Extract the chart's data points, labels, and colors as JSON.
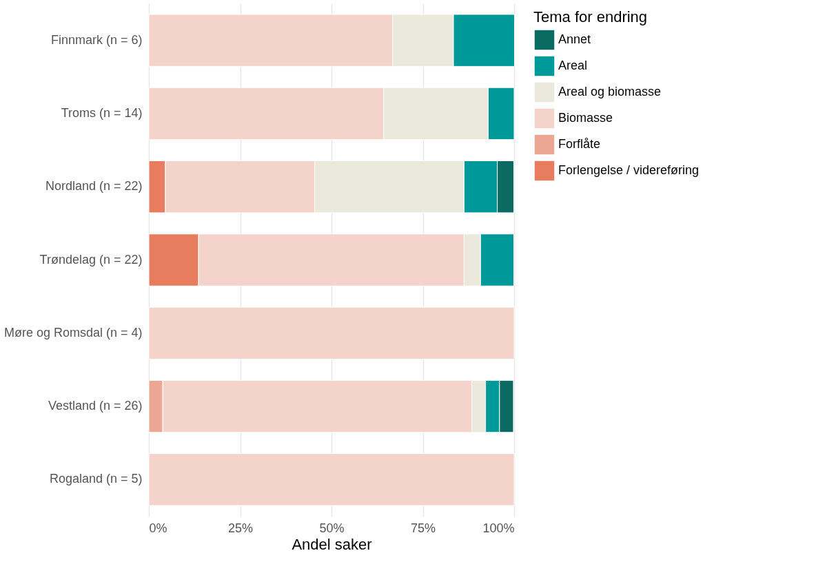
{
  "chart_data": {
    "type": "bar",
    "orientation": "horizontal",
    "stacked": true,
    "categories": [
      "Finnmark (n = 6)",
      "Troms (n = 14)",
      "Nordland (n = 22)",
      "Trøndelag (n = 22)",
      "Møre og Romsdal (n = 4)",
      "Vestland (n = 26)",
      "Rogaland (n = 5)"
    ],
    "series": [
      {
        "name": "Forlengelse / videreføring",
        "color": "#e77c5f",
        "values": [
          null,
          null,
          4.5,
          13.6,
          null,
          null,
          null
        ]
      },
      {
        "name": "Forflåte",
        "color": "#eca794",
        "values": [
          null,
          null,
          null,
          null,
          null,
          3.8,
          null
        ]
      },
      {
        "name": "Biomasse",
        "color": "#f3d3ca",
        "values": [
          66.7,
          64.3,
          40.9,
          72.7,
          100,
          84.6,
          100
        ]
      },
      {
        "name": "Areal og biomasse",
        "color": "#ebe9dc",
        "values": [
          16.7,
          28.6,
          40.9,
          4.5,
          null,
          3.8,
          null
        ]
      },
      {
        "name": "Areal",
        "color": "#00999a",
        "values": [
          16.7,
          7.1,
          9.1,
          9.1,
          null,
          3.8,
          null
        ]
      },
      {
        "name": "Annet",
        "color": "#0b6b63",
        "values": [
          null,
          null,
          4.5,
          null,
          null,
          3.8,
          null
        ]
      }
    ],
    "xlabel": "Andel saker",
    "legend_title": "Tema for endring",
    "xlim": [
      0,
      100
    ],
    "xticks": [
      {
        "value": 0,
        "label": "0%"
      },
      {
        "value": 25,
        "label": "25%"
      },
      {
        "value": 50,
        "label": "50%"
      },
      {
        "value": 75,
        "label": "75%"
      },
      {
        "value": 100,
        "label": "100%"
      }
    ],
    "grid": "x",
    "legend": "right"
  }
}
